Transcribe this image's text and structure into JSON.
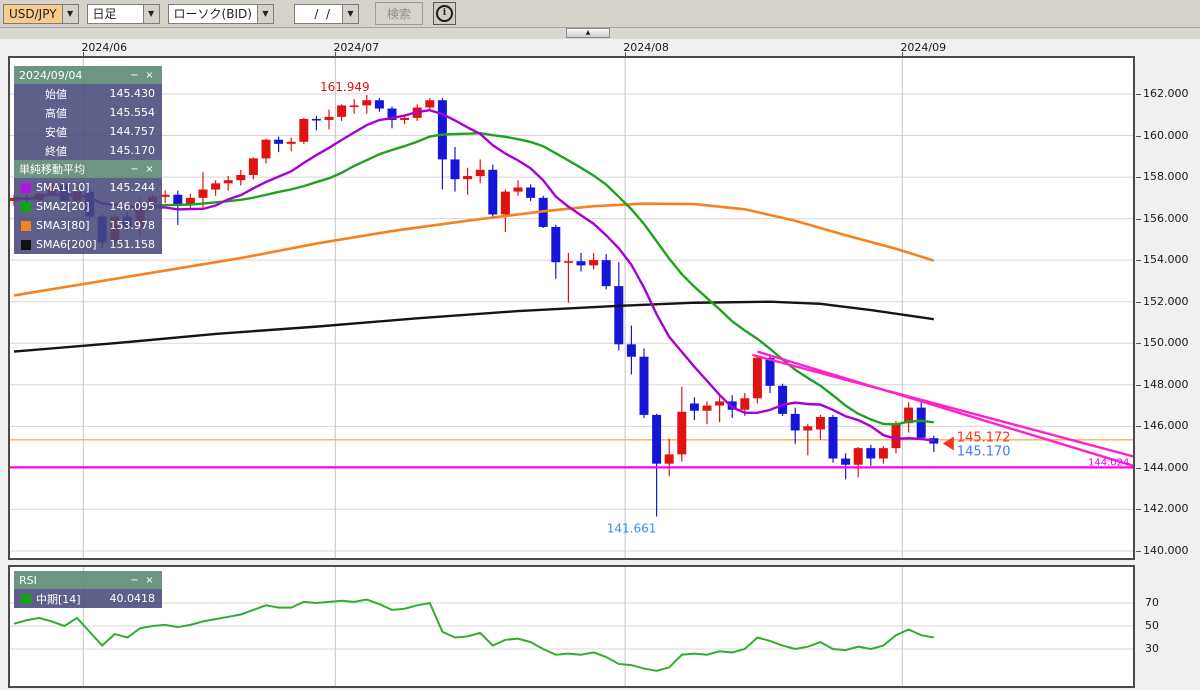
{
  "toolbar": {
    "pair": "USD/JPY",
    "timeframe": "日足",
    "chart_type": "ローソク(BID)",
    "date_value": "  /  /",
    "search_label": "検索",
    "dropdown_glyph": "▼",
    "info_glyph": "i"
  },
  "collapse_glyph": "▲",
  "x_axis_labels": [
    "2024/06",
    "2024/07",
    "2024/08",
    "2024/09"
  ],
  "y_axis_labels": [
    "162.000",
    "160.000",
    "158.000",
    "156.000",
    "154.000",
    "152.000",
    "150.000",
    "148.000",
    "146.000",
    "144.000",
    "142.000",
    "140.000"
  ],
  "rsi_axis_labels": [
    "70",
    "50",
    "30"
  ],
  "panels": {
    "ohlc": {
      "title": "2024/09/04",
      "minimize": "−",
      "close": "×",
      "rows": [
        {
          "label": "始値",
          "value": "145.430"
        },
        {
          "label": "高値",
          "value": "145.554"
        },
        {
          "label": "安値",
          "value": "144.757"
        },
        {
          "label": "終値",
          "value": "145.170"
        }
      ]
    },
    "sma": {
      "title": "単純移動平均",
      "minimize": "−",
      "close": "×",
      "rows": [
        {
          "name": "SMA1[10]",
          "value": "145.244",
          "color": "#b413e0"
        },
        {
          "name": "SMA2[20]",
          "value": "146.095",
          "color": "#12a312"
        },
        {
          "name": "SMA3[80]",
          "value": "153.978",
          "color": "#f5821e"
        },
        {
          "name": "SMA6[200]",
          "value": "151.158",
          "color": "#111111"
        }
      ]
    },
    "rsi": {
      "title": "RSI",
      "minimize": "−",
      "close": "×",
      "rows": [
        {
          "name": "中期[14]",
          "value": "40.0418",
          "color": "#12a312"
        }
      ]
    }
  },
  "annotations": {
    "high_label": "161.949",
    "low_label": "141.661",
    "ask_label": "145.172",
    "bid_label": "145.170",
    "hline_label": "144.024"
  },
  "chart_data": {
    "type": "candlestick",
    "title": "USD/JPY daily with SMA overlays and RSI",
    "y_axis": {
      "min": 140,
      "max": 162,
      "step": 2
    },
    "colors": {
      "up": "#e01212",
      "down": "#1616d9",
      "sma10": "#a800d6",
      "sma20": "#1fa31f",
      "sma80": "#f5821e",
      "sma200": "#151515",
      "trend": "#ff22cc",
      "hline_magenta": "#ff00ee",
      "hline_orange": "#ffb152",
      "rsi": "#2fae2f",
      "grid": "#d7d7d7",
      "month_grid": "#c3c3c3",
      "border": "#4a4a4a",
      "ask_text": "#ff3322",
      "bid_text": "#4477ff",
      "high_text": "#e01212",
      "low_text": "#4488ee"
    },
    "month_break_indices": [
      6,
      26,
      49,
      71
    ],
    "candles": [
      [
        "05/24",
        156.85,
        157.15,
        156.6,
        157.0
      ],
      [
        "05/27",
        157.0,
        157.15,
        156.65,
        156.9
      ],
      [
        "05/28",
        156.9,
        157.25,
        156.7,
        157.2
      ],
      [
        "05/29",
        157.2,
        157.7,
        157.05,
        157.65
      ],
      [
        "05/30",
        157.65,
        157.7,
        156.6,
        156.85
      ],
      [
        "05/31",
        156.85,
        157.45,
        156.65,
        157.3
      ],
      [
        "06/03",
        157.3,
        157.5,
        155.95,
        156.1
      ],
      [
        "06/04",
        156.1,
        156.2,
        154.55,
        154.85
      ],
      [
        "06/05",
        154.85,
        156.2,
        154.6,
        156.1
      ],
      [
        "06/06",
        156.1,
        156.3,
        155.4,
        155.6
      ],
      [
        "06/07",
        155.6,
        157.0,
        155.1,
        156.75
      ],
      [
        "06/10",
        156.75,
        157.15,
        156.55,
        157.05
      ],
      [
        "06/11",
        157.05,
        157.35,
        156.75,
        157.15
      ],
      [
        "06/12",
        157.15,
        157.35,
        155.7,
        156.7
      ],
      [
        "06/13",
        156.7,
        157.2,
        156.45,
        157.0
      ],
      [
        "06/14",
        157.0,
        158.25,
        156.55,
        157.4
      ],
      [
        "06/17",
        157.4,
        157.85,
        157.1,
        157.7
      ],
      [
        "06/18",
        157.7,
        158.05,
        157.35,
        157.85
      ],
      [
        "06/19",
        157.85,
        158.35,
        157.6,
        158.1
      ],
      [
        "06/20",
        158.1,
        158.95,
        157.9,
        158.9
      ],
      [
        "06/21",
        158.9,
        159.85,
        158.65,
        159.8
      ],
      [
        "06/24",
        159.8,
        159.95,
        159.2,
        159.6
      ],
      [
        "06/25",
        159.6,
        159.9,
        159.25,
        159.7
      ],
      [
        "06/26",
        159.7,
        160.85,
        159.6,
        160.8
      ],
      [
        "06/27",
        160.8,
        160.95,
        160.25,
        160.75
      ],
      [
        "06/28",
        160.75,
        161.25,
        160.3,
        160.9
      ],
      [
        "07/01",
        160.9,
        161.5,
        160.7,
        161.45
      ],
      [
        "07/02",
        161.45,
        161.75,
        161.05,
        161.45
      ],
      [
        "07/03",
        161.45,
        161.949,
        161.05,
        161.7
      ],
      [
        "07/04",
        161.7,
        161.8,
        161.15,
        161.3
      ],
      [
        "07/05",
        161.3,
        161.4,
        160.35,
        160.75
      ],
      [
        "07/08",
        160.75,
        161.0,
        160.55,
        160.85
      ],
      [
        "07/09",
        160.85,
        161.5,
        160.7,
        161.35
      ],
      [
        "07/10",
        161.35,
        161.8,
        161.2,
        161.7
      ],
      [
        "07/11",
        161.7,
        161.8,
        157.4,
        158.85
      ],
      [
        "07/12",
        158.85,
        159.45,
        157.3,
        157.9
      ],
      [
        "07/15",
        157.9,
        158.45,
        157.15,
        158.05
      ],
      [
        "07/16",
        158.05,
        158.85,
        157.7,
        158.35
      ],
      [
        "07/17",
        158.35,
        158.6,
        156.1,
        156.2
      ],
      [
        "07/18",
        156.2,
        157.4,
        155.35,
        157.3
      ],
      [
        "07/19",
        157.3,
        157.85,
        157.1,
        157.5
      ],
      [
        "07/22",
        157.5,
        157.65,
        156.85,
        157.0
      ],
      [
        "07/23",
        157.0,
        157.1,
        155.55,
        155.6
      ],
      [
        "07/24",
        155.6,
        155.7,
        153.1,
        153.9
      ],
      [
        "07/25",
        153.9,
        154.35,
        151.95,
        153.95
      ],
      [
        "07/26",
        153.95,
        154.35,
        153.45,
        153.75
      ],
      [
        "07/29",
        153.75,
        154.35,
        153.55,
        154.0
      ],
      [
        "07/30",
        154.0,
        154.3,
        152.6,
        152.75
      ],
      [
        "07/31",
        152.75,
        153.9,
        149.65,
        149.95
      ],
      [
        "08/01",
        149.95,
        150.85,
        148.5,
        149.35
      ],
      [
        "08/02",
        149.35,
        149.75,
        146.4,
        146.55
      ],
      [
        "08/05",
        146.55,
        146.6,
        141.661,
        144.2
      ],
      [
        "08/06",
        144.2,
        145.4,
        143.6,
        144.65
      ],
      [
        "08/07",
        144.65,
        147.9,
        144.3,
        146.7
      ],
      [
        "08/08",
        147.1,
        147.4,
        146.3,
        146.75
      ],
      [
        "08/09",
        146.75,
        147.2,
        146.1,
        147.0
      ],
      [
        "08/12",
        147.0,
        147.55,
        146.2,
        147.2
      ],
      [
        "08/13",
        147.2,
        147.5,
        146.4,
        146.8
      ],
      [
        "08/14",
        146.8,
        147.6,
        146.5,
        147.35
      ],
      [
        "08/15",
        147.35,
        149.4,
        147.1,
        149.3
      ],
      [
        "08/16",
        149.3,
        149.4,
        147.6,
        147.95
      ],
      [
        "08/19",
        147.95,
        148.05,
        146.5,
        146.6
      ],
      [
        "08/20",
        146.6,
        146.9,
        145.15,
        145.8
      ],
      [
        "08/21",
        145.8,
        146.1,
        144.6,
        146.0
      ],
      [
        "08/22",
        145.85,
        146.55,
        145.35,
        146.45
      ],
      [
        "08/23",
        146.45,
        146.55,
        144.25,
        144.45
      ],
      [
        "08/26",
        144.45,
        144.7,
        143.45,
        144.15
      ],
      [
        "08/27",
        144.15,
        145.0,
        143.55,
        144.95
      ],
      [
        "08/28",
        144.95,
        145.1,
        144.1,
        144.45
      ],
      [
        "08/29",
        144.45,
        145.05,
        144.2,
        144.95
      ],
      [
        "08/30",
        144.95,
        146.25,
        144.7,
        146.15
      ],
      [
        "09/02",
        146.15,
        147.15,
        145.7,
        146.9
      ],
      [
        "09/03",
        146.9,
        147.2,
        145.35,
        145.45
      ],
      [
        "09/04",
        145.43,
        145.554,
        144.757,
        145.17
      ]
    ],
    "sma10_period": 10,
    "sma20_period": 20,
    "sma80_points": [
      [
        0,
        152.3
      ],
      [
        6,
        152.9
      ],
      [
        12,
        153.5
      ],
      [
        18,
        154.1
      ],
      [
        24,
        154.8
      ],
      [
        30,
        155.4
      ],
      [
        36,
        155.9
      ],
      [
        42,
        156.35
      ],
      [
        46,
        156.6
      ],
      [
        50,
        156.72
      ],
      [
        54,
        156.7
      ],
      [
        58,
        156.45
      ],
      [
        62,
        155.9
      ],
      [
        66,
        155.2
      ],
      [
        70,
        154.55
      ],
      [
        73,
        153.978
      ]
    ],
    "sma200_points": [
      [
        0,
        149.6
      ],
      [
        8,
        150.0
      ],
      [
        16,
        150.45
      ],
      [
        24,
        150.8
      ],
      [
        32,
        151.2
      ],
      [
        40,
        151.55
      ],
      [
        48,
        151.8
      ],
      [
        54,
        151.95
      ],
      [
        60,
        152.0
      ],
      [
        64,
        151.9
      ],
      [
        68,
        151.6
      ],
      [
        73,
        151.158
      ]
    ],
    "horizontal_lines": [
      {
        "price": 145.35,
        "color_key": "hline_orange",
        "width": 1.3
      },
      {
        "price": 144.024,
        "color_key": "hline_magenta",
        "width": 2.2
      }
    ],
    "trend_lines": [
      {
        "points": [
          [
            58.6,
            149.44
          ],
          [
            91,
            144.2
          ]
        ]
      },
      {
        "points": [
          [
            59.0,
            149.6
          ],
          [
            91,
            143.7
          ]
        ]
      }
    ],
    "current_price": {
      "ask": 145.172,
      "bid": 145.17
    },
    "high_point_index": 28,
    "low_point_index": 51,
    "rsi": {
      "period": 14,
      "gridlines": [
        70,
        50,
        30
      ],
      "values": [
        52,
        55,
        57,
        54,
        50,
        57,
        45,
        33,
        43,
        40,
        48,
        50,
        51,
        49,
        51,
        54,
        56,
        58,
        60,
        64,
        68,
        66,
        66,
        71,
        70,
        71,
        72,
        71,
        73,
        69,
        64,
        65,
        68,
        70,
        45,
        40,
        41,
        44,
        33,
        38,
        39,
        36,
        30,
        25,
        26,
        25,
        27,
        23,
        17,
        16,
        13,
        11,
        14,
        25,
        26,
        25,
        28,
        27,
        30,
        40,
        37,
        33,
        30,
        32,
        36,
        30,
        29,
        32,
        30,
        33,
        42,
        47,
        42,
        40
      ]
    }
  }
}
